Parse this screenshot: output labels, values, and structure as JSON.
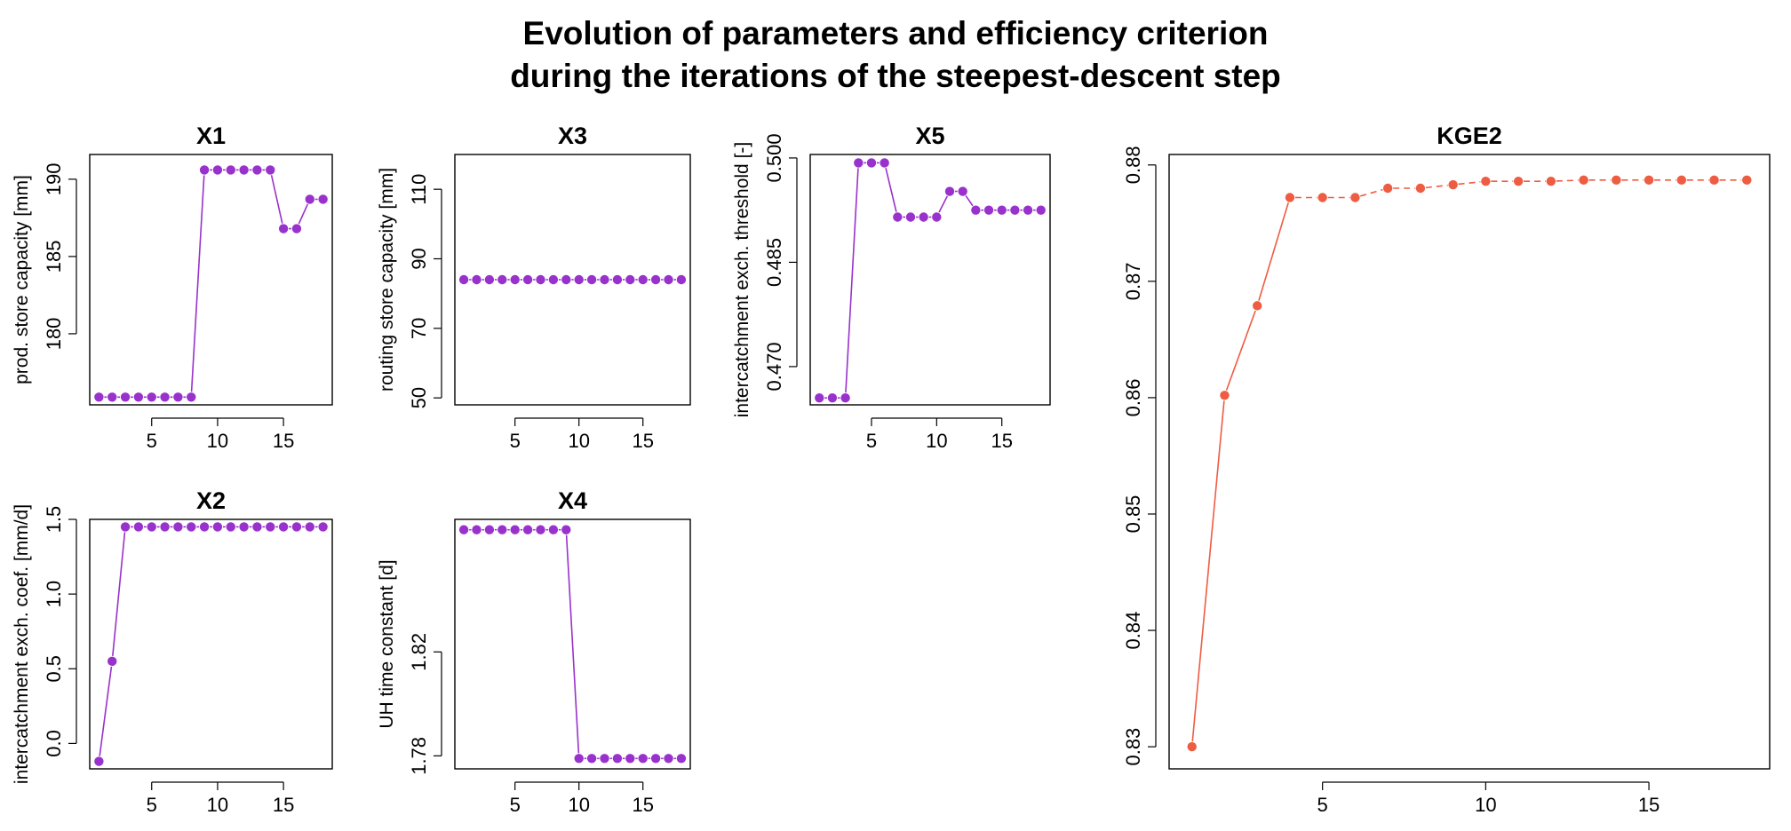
{
  "figure": {
    "title_line1": "Evolution of parameters and efficiency criterion",
    "title_line2": "during the iterations of the steepest-descent step"
  },
  "colors": {
    "parameter": "#9932CC",
    "criterion": "#EE5C42",
    "frame": "#000000"
  },
  "chart_data": [
    {
      "id": "X1",
      "type": "line",
      "title": "X1",
      "ylabel": "prod. store capacity [mm]",
      "xlim": [
        0.3,
        18.7
      ],
      "ylim": [
        175.4,
        191.6
      ],
      "xticks": [
        5,
        10,
        15
      ],
      "yticks": [
        180,
        185,
        190
      ],
      "x": [
        1,
        2,
        3,
        4,
        5,
        6,
        7,
        8,
        9,
        10,
        11,
        12,
        13,
        14,
        15,
        16,
        17,
        18
      ],
      "y": [
        175.9,
        175.9,
        175.9,
        175.9,
        175.9,
        175.9,
        175.9,
        175.9,
        190.6,
        190.6,
        190.6,
        190.6,
        190.6,
        190.6,
        186.8,
        186.8,
        188.7,
        188.7
      ],
      "grid": false,
      "legend": "none"
    },
    {
      "id": "X3",
      "type": "line",
      "title": "X3",
      "ylabel": "routing store capacity [mm]",
      "xlim": [
        0.3,
        18.7
      ],
      "ylim": [
        48,
        120
      ],
      "xticks": [
        5,
        10,
        15
      ],
      "yticks": [
        50,
        70,
        90,
        110
      ],
      "x": [
        1,
        2,
        3,
        4,
        5,
        6,
        7,
        8,
        9,
        10,
        11,
        12,
        13,
        14,
        15,
        16,
        17,
        18
      ],
      "y": [
        84,
        84,
        84,
        84,
        84,
        84,
        84,
        84,
        84,
        84,
        84,
        84,
        84,
        84,
        84,
        84,
        84,
        84
      ],
      "grid": false,
      "legend": "none"
    },
    {
      "id": "X5",
      "type": "line",
      "title": "X5",
      "ylabel": "intercatchment exch. threshold [-]",
      "xlim": [
        0.3,
        18.7
      ],
      "ylim": [
        0.4645,
        0.5005
      ],
      "xticks": [
        5,
        10,
        15
      ],
      "yticks": [
        0.47,
        0.485,
        0.5
      ],
      "x": [
        1,
        2,
        3,
        4,
        5,
        6,
        7,
        8,
        9,
        10,
        11,
        12,
        13,
        14,
        15,
        16,
        17,
        18
      ],
      "y": [
        0.4655,
        0.4655,
        0.4655,
        0.4993,
        0.4993,
        0.4993,
        0.4915,
        0.4915,
        0.4915,
        0.4915,
        0.4952,
        0.4952,
        0.4925,
        0.4925,
        0.4925,
        0.4925,
        0.4925,
        0.4925
      ],
      "grid": false,
      "legend": "none"
    },
    {
      "id": "X2",
      "type": "line",
      "title": "X2",
      "ylabel": "intercatchment exch. coef. [mm/d]",
      "xlim": [
        0.3,
        18.7
      ],
      "ylim": [
        -0.17,
        1.5
      ],
      "xticks": [
        5,
        10,
        15
      ],
      "yticks": [
        0.0,
        0.5,
        1.0,
        1.5
      ],
      "x": [
        1,
        2,
        3,
        4,
        5,
        6,
        7,
        8,
        9,
        10,
        11,
        12,
        13,
        14,
        15,
        16,
        17,
        18
      ],
      "y": [
        -0.12,
        0.55,
        1.45,
        1.45,
        1.45,
        1.45,
        1.45,
        1.45,
        1.45,
        1.45,
        1.45,
        1.45,
        1.45,
        1.45,
        1.45,
        1.45,
        1.45,
        1.45
      ],
      "grid": false,
      "legend": "none"
    },
    {
      "id": "X4",
      "type": "line",
      "title": "X4",
      "ylabel": "UH time constant [d]",
      "xlim": [
        0.3,
        18.7
      ],
      "ylim": [
        1.775,
        1.871
      ],
      "xticks": [
        5,
        10,
        15
      ],
      "yticks": [
        1.78,
        1.82
      ],
      "ytick_labels": [
        "1.78",
        "1.82"
      ],
      "x": [
        1,
        2,
        3,
        4,
        5,
        6,
        7,
        8,
        9,
        10,
        11,
        12,
        13,
        14,
        15,
        16,
        17,
        18
      ],
      "y": [
        1.867,
        1.867,
        1.867,
        1.867,
        1.867,
        1.867,
        1.867,
        1.867,
        1.867,
        1.779,
        1.779,
        1.779,
        1.779,
        1.779,
        1.779,
        1.779,
        1.779,
        1.779
      ],
      "grid": false,
      "legend": "none"
    },
    {
      "id": "KGE2",
      "type": "line",
      "title": "KGE2",
      "ylabel": "",
      "xlim": [
        0.3,
        18.7
      ],
      "ylim": [
        0.8281,
        0.8809
      ],
      "xticks": [
        5,
        10,
        15
      ],
      "yticks": [
        0.83,
        0.84,
        0.85,
        0.86,
        0.87,
        0.88
      ],
      "x": [
        1,
        2,
        3,
        4,
        5,
        6,
        7,
        8,
        9,
        10,
        11,
        12,
        13,
        14,
        15,
        16,
        17,
        18
      ],
      "y": [
        0.83,
        0.8602,
        0.8679,
        0.8772,
        0.8772,
        0.8772,
        0.878,
        0.878,
        0.8783,
        0.8786,
        0.8786,
        0.8786,
        0.8787,
        0.8787,
        0.8787,
        0.8787,
        0.8787,
        0.8787
      ],
      "grid": false,
      "legend": "none"
    }
  ]
}
